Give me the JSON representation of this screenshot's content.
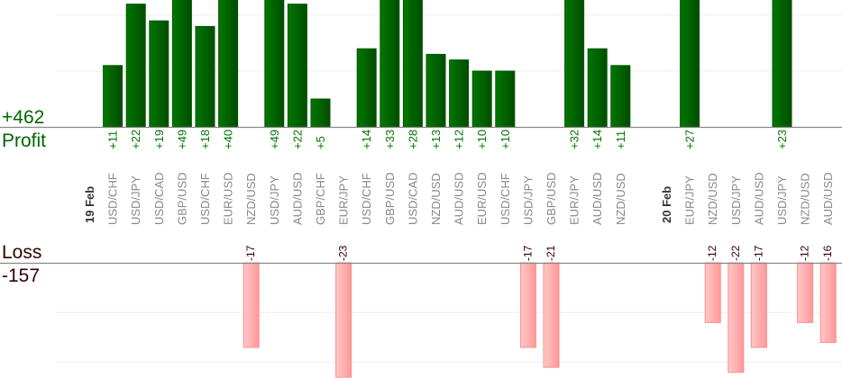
{
  "chart_data": {
    "type": "bar",
    "title": "",
    "profit": {
      "label": "Profit",
      "total": "+462"
    },
    "loss": {
      "label": "Loss",
      "total": "-157"
    },
    "gridline_step": 10,
    "colors": {
      "profit": "#006600",
      "profit_text": "#007700",
      "loss": "#ff9999",
      "loss_text": "#330000",
      "pair_text": "#888888",
      "date_text": "#333333"
    },
    "slots": [
      {
        "type": "date",
        "label": "19 Feb"
      },
      {
        "type": "trade",
        "label": "USD/CHF",
        "value": 11
      },
      {
        "type": "trade",
        "label": "USD/JPY",
        "value": 22
      },
      {
        "type": "trade",
        "label": "USD/CAD",
        "value": 19
      },
      {
        "type": "trade",
        "label": "GBP/USD",
        "value": 49
      },
      {
        "type": "trade",
        "label": "USD/CHF",
        "value": 18
      },
      {
        "type": "trade",
        "label": "EUR/USD",
        "value": 40
      },
      {
        "type": "trade",
        "label": "NZD/USD",
        "value": -17
      },
      {
        "type": "trade",
        "label": "USD/JPY",
        "value": 49
      },
      {
        "type": "trade",
        "label": "AUD/USD",
        "value": 22
      },
      {
        "type": "trade",
        "label": "GBP/CHF",
        "value": 5
      },
      {
        "type": "trade",
        "label": "EUR/JPY",
        "value": -23
      },
      {
        "type": "trade",
        "label": "USD/CHF",
        "value": 14
      },
      {
        "type": "trade",
        "label": "GBP/USD",
        "value": 33
      },
      {
        "type": "trade",
        "label": "USD/CAD",
        "value": 28
      },
      {
        "type": "trade",
        "label": "NZD/USD",
        "value": 13
      },
      {
        "type": "trade",
        "label": "AUD/USD",
        "value": 12
      },
      {
        "type": "trade",
        "label": "EUR/USD",
        "value": 10
      },
      {
        "type": "trade",
        "label": "USD/CHF",
        "value": 10
      },
      {
        "type": "trade",
        "label": "USD/JPY",
        "value": -17
      },
      {
        "type": "trade",
        "label": "GBP/USD",
        "value": -21
      },
      {
        "type": "trade",
        "label": "EUR/JPY",
        "value": 32
      },
      {
        "type": "trade",
        "label": "AUD/USD",
        "value": 14
      },
      {
        "type": "trade",
        "label": "NZD/USD",
        "value": 11
      },
      {
        "type": "empty"
      },
      {
        "type": "date",
        "label": "20 Feb"
      },
      {
        "type": "trade",
        "label": "EUR/JPY",
        "value": 27
      },
      {
        "type": "trade",
        "label": "NZD/USD",
        "value": -12
      },
      {
        "type": "trade",
        "label": "USD/JPY",
        "value": -22
      },
      {
        "type": "trade",
        "label": "AUD/USD",
        "value": -17
      },
      {
        "type": "trade",
        "label": "USD/JPY",
        "value": 23
      },
      {
        "type": "trade",
        "label": "NZD/USD",
        "value": -12
      },
      {
        "type": "trade",
        "label": "AUD/USD",
        "value": -16
      }
    ]
  }
}
